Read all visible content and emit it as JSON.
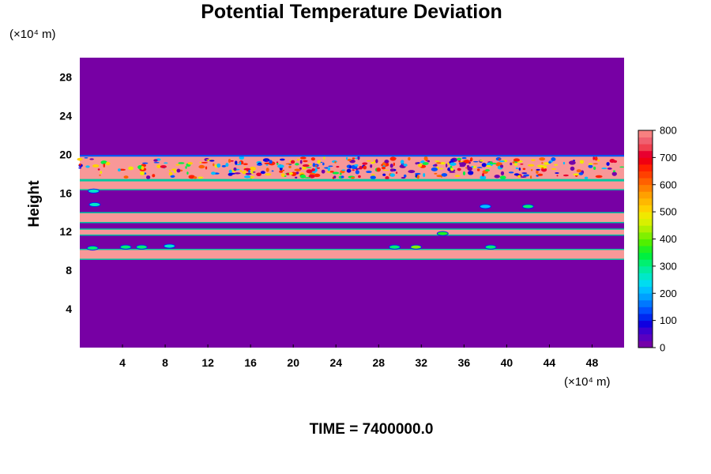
{
  "chart_data": {
    "type": "heatmap",
    "title": "Potential Temperature Deviation",
    "ylabel": "Height",
    "x_units": "(×10⁴ m)",
    "y_units": "(×10⁴ m)",
    "time_label": "TIME = 7400000.0",
    "xlim": [
      0,
      51
    ],
    "ylim": [
      0,
      30
    ],
    "x_ticks": [
      4,
      8,
      12,
      16,
      20,
      24,
      28,
      32,
      36,
      40,
      44,
      48
    ],
    "y_ticks": [
      4,
      8,
      12,
      16,
      20,
      24,
      28
    ],
    "colorbar": {
      "min": 0,
      "max": 800,
      "levels": [
        0,
        25,
        50,
        75,
        100,
        125,
        150,
        175,
        200,
        225,
        250,
        275,
        300,
        325,
        350,
        375,
        400,
        425,
        450,
        475,
        500,
        525,
        550,
        575,
        600,
        625,
        650,
        675,
        700,
        725,
        750,
        775,
        800
      ],
      "tick_values": [
        0,
        100,
        200,
        300,
        400,
        500,
        600,
        700,
        800
      ],
      "tick_labels": [
        "0",
        "100",
        "200",
        "300",
        "400",
        "500",
        "600",
        "700",
        "800"
      ],
      "colors": [
        "#7400a8",
        "#5a00c0",
        "#3c00d0",
        "#1000e0",
        "#0028f0",
        "#0050ff",
        "#0078ff",
        "#00a0ff",
        "#00c0ff",
        "#00dcf0",
        "#00e8c8",
        "#00eca0",
        "#00f070",
        "#00f040",
        "#20f020",
        "#50f000",
        "#80f000",
        "#b0f000",
        "#d8f000",
        "#f0e800",
        "#ffd000",
        "#ffb800",
        "#ffa000",
        "#ff8000",
        "#ff6000",
        "#ff4000",
        "#ff2000",
        "#f00010",
        "#e80030",
        "#f04050",
        "#f06070",
        "#f88080"
      ],
      "background_color": "#7700a4",
      "band_color": "#f89898"
    },
    "bands": [
      {
        "y0": 9.2,
        "y1": 10.1,
        "value": 800
      },
      {
        "y0": 11.7,
        "y1": 12.2,
        "value": 800
      },
      {
        "y0": 13.0,
        "y1": 13.9,
        "value": 800
      },
      {
        "y0": 16.4,
        "y1": 17.2,
        "value": 800
      },
      {
        "y0": 17.4,
        "y1": 19.8,
        "value": 800
      }
    ],
    "turbulent_layer": {
      "y0": 17.4,
      "y1": 19.8,
      "x0": 0,
      "x1": 51
    },
    "features": [
      {
        "x": 1.2,
        "y": 10.3,
        "value": 300
      },
      {
        "x": 4.3,
        "y": 10.4,
        "value": 300
      },
      {
        "x": 5.8,
        "y": 10.4,
        "value": 300
      },
      {
        "x": 8.4,
        "y": 10.5,
        "value": 250
      },
      {
        "x": 29.5,
        "y": 10.4,
        "value": 300
      },
      {
        "x": 31.5,
        "y": 10.4,
        "value": 400
      },
      {
        "x": 38.5,
        "y": 10.4,
        "value": 300
      },
      {
        "x": 1.4,
        "y": 14.8,
        "value": 250
      },
      {
        "x": 38.0,
        "y": 14.6,
        "value": 200
      },
      {
        "x": 42.0,
        "y": 14.6,
        "value": 300
      },
      {
        "x": 34.0,
        "y": 11.8,
        "value": 350
      },
      {
        "x": 1.3,
        "y": 16.2,
        "value": 250
      }
    ]
  }
}
